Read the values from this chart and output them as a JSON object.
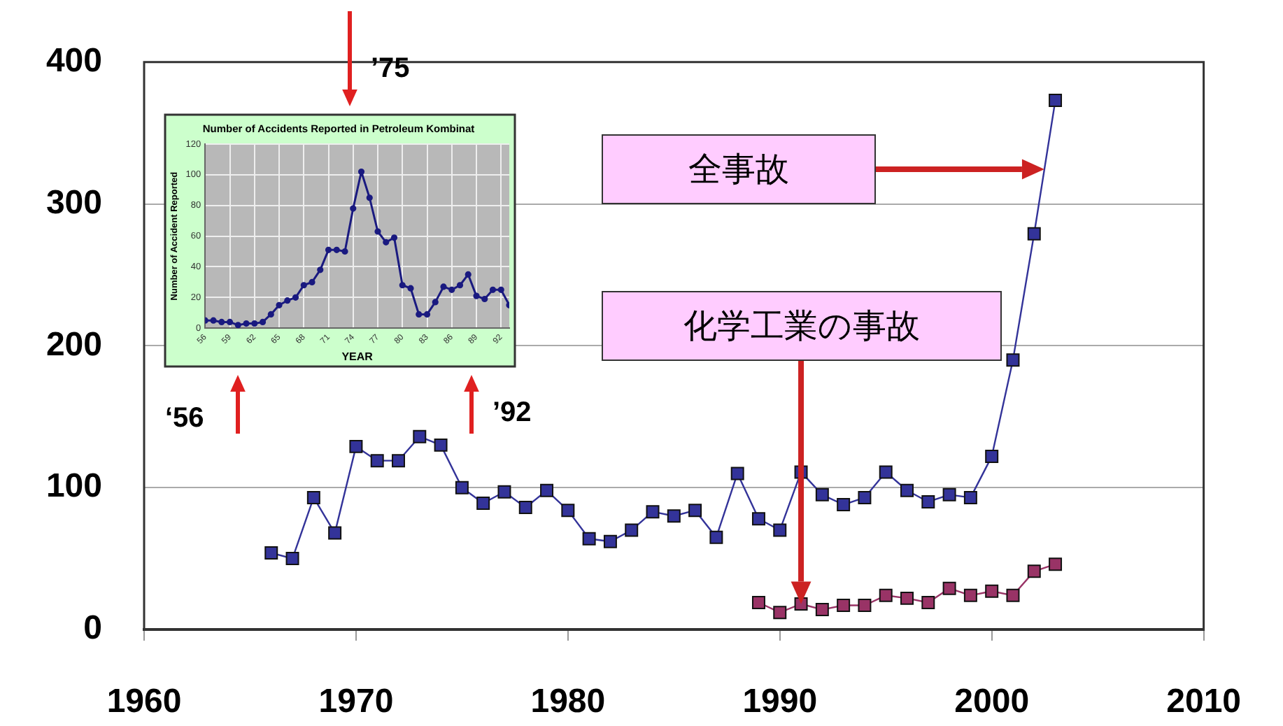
{
  "chart_data": [
    {
      "type": "line",
      "xlim": [
        1960,
        2010
      ],
      "xticks": [
        1960,
        1970,
        1980,
        1990,
        2000,
        2010
      ],
      "ylim": [
        0,
        400
      ],
      "yticks": [
        0,
        100,
        200,
        300,
        400
      ],
      "grid": "y",
      "legend": false,
      "marker": "square",
      "line_style": "solid",
      "annotations": [
        "全事故",
        "化学工業の事故"
      ],
      "series": [
        {
          "color": "#333399",
          "x": [
            1966,
            1967,
            1968,
            1969,
            1970,
            1971,
            1972,
            1973,
            1974,
            1975,
            1976,
            1977,
            1978,
            1979,
            1980,
            1981,
            1982,
            1983,
            1984,
            1985,
            1986,
            1987,
            1988,
            1989,
            1990,
            1991,
            1992,
            1993,
            1994,
            1995,
            1996,
            1997,
            1998,
            1999,
            2000,
            2001,
            2002,
            2003
          ],
          "values": [
            54,
            50,
            93,
            68,
            129,
            119,
            119,
            136,
            130,
            100,
            89,
            97,
            86,
            98,
            84,
            64,
            62,
            70,
            83,
            80,
            84,
            65,
            110,
            78,
            70,
            111,
            95,
            88,
            93,
            111,
            98,
            90,
            95,
            93,
            122,
            190,
            279,
            373
          ]
        },
        {
          "color": "#993366",
          "x": [
            1989,
            1990,
            1991,
            1992,
            1993,
            1994,
            1995,
            1996,
            1997,
            1998,
            1999,
            2000,
            2001,
            2002,
            2003
          ],
          "values": [
            19,
            12,
            18,
            14,
            17,
            17,
            24,
            22,
            19,
            29,
            24,
            27,
            24,
            41,
            46
          ]
        }
      ]
    },
    {
      "type": "line",
      "title": "Number of Accidents Reported in Petroleum Kombinat",
      "xlabel": "YEAR",
      "ylabel": "Number of Accident Reported",
      "xlim": [
        56,
        93
      ],
      "xticks": [
        56,
        59,
        62,
        65,
        68,
        71,
        74,
        77,
        80,
        83,
        86,
        89,
        92
      ],
      "ylim": [
        0,
        120
      ],
      "yticks": [
        0,
        20,
        40,
        60,
        80,
        100,
        120
      ],
      "grid": true,
      "legend": false,
      "marker": "circle",
      "line_style": "solid",
      "annotations": [
        "’75",
        "‘56",
        "’92"
      ],
      "series": [
        {
          "color": "#1a1a80",
          "x": [
            56,
            57,
            58,
            59,
            60,
            61,
            62,
            63,
            64,
            65,
            66,
            67,
            68,
            69,
            70,
            71,
            72,
            73,
            74,
            75,
            76,
            77,
            78,
            79,
            80,
            81,
            82,
            83,
            84,
            85,
            86,
            87,
            88,
            89,
            90,
            91,
            92,
            93
          ],
          "values": [
            5,
            5,
            4,
            4,
            2,
            3,
            3,
            4,
            9,
            15,
            18,
            20,
            28,
            30,
            38,
            51,
            51,
            50,
            78,
            102,
            85,
            63,
            56,
            59,
            28,
            26,
            9,
            9,
            17,
            27,
            25,
            28,
            35,
            21,
            19,
            25,
            25,
            15
          ]
        }
      ]
    }
  ]
}
